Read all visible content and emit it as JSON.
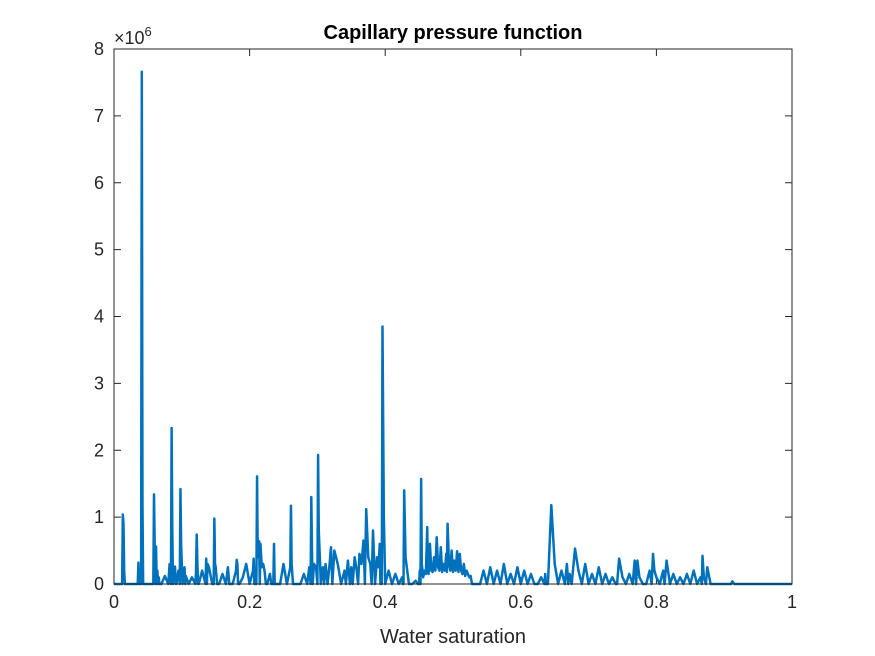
{
  "chart_data": {
    "type": "line",
    "title": "Capillary pressure function",
    "xlabel": "Water saturation",
    "ylabel": "",
    "xlim": [
      0,
      1
    ],
    "ylim": [
      0,
      8000000
    ],
    "xticks": [
      0,
      0.2,
      0.4,
      0.6,
      0.8,
      1
    ],
    "xtick_labels": [
      "0",
      "0.2",
      "0.4",
      "0.6",
      "0.8",
      "1"
    ],
    "yticks": [
      0,
      1000000,
      2000000,
      3000000,
      4000000,
      5000000,
      6000000,
      7000000,
      8000000
    ],
    "ytick_labels": [
      "0",
      "1",
      "2",
      "3",
      "4",
      "5",
      "6",
      "7",
      "8"
    ],
    "y_exponent_base": "×10",
    "y_exponent_power": "6",
    "grid": false,
    "box": true,
    "series": [
      {
        "color": "#0072BD",
        "x": [
          0,
          0.012,
          0.013,
          0.014,
          0.015,
          0.016,
          0.02,
          0.03,
          0.035,
          0.036,
          0.037,
          0.038,
          0.04,
          0.041,
          0.042,
          0.043,
          0.05,
          0.055,
          0.058,
          0.059,
          0.06,
          0.061,
          0.062,
          0.063,
          0.064,
          0.065,
          0.066,
          0.067,
          0.07,
          0.075,
          0.08,
          0.082,
          0.084,
          0.085,
          0.086,
          0.087,
          0.088,
          0.09,
          0.091,
          0.092,
          0.095,
          0.097,
          0.098,
          0.099,
          0.1,
          0.101,
          0.102,
          0.104,
          0.105,
          0.106,
          0.11,
          0.115,
          0.12,
          0.121,
          0.122,
          0.123,
          0.124,
          0.125,
          0.13,
          0.135,
          0.136,
          0.137,
          0.138,
          0.14,
          0.145,
          0.147,
          0.148,
          0.149,
          0.15,
          0.152,
          0.155,
          0.16,
          0.165,
          0.168,
          0.17,
          0.171,
          0.175,
          0.18,
          0.181,
          0.182,
          0.183,
          0.185,
          0.19,
          0.195,
          0.2,
          0.205,
          0.206,
          0.207,
          0.21,
          0.211,
          0.212,
          0.214,
          0.215,
          0.216,
          0.218,
          0.22,
          0.222,
          0.224,
          0.226,
          0.23,
          0.232,
          0.235,
          0.236,
          0.237,
          0.24,
          0.245,
          0.25,
          0.255,
          0.26,
          0.261,
          0.262,
          0.264,
          0.27,
          0.275,
          0.28,
          0.285,
          0.288,
          0.29,
          0.291,
          0.292,
          0.293,
          0.295,
          0.298,
          0.3,
          0.301,
          0.302,
          0.304,
          0.305,
          0.308,
          0.31,
          0.312,
          0.315,
          0.318,
          0.32,
          0.322,
          0.325,
          0.33,
          0.335,
          0.34,
          0.342,
          0.345,
          0.348,
          0.35,
          0.352,
          0.355,
          0.358,
          0.36,
          0.362,
          0.365,
          0.368,
          0.37,
          0.372,
          0.375,
          0.378,
          0.38,
          0.382,
          0.385,
          0.388,
          0.39,
          0.392,
          0.393,
          0.394,
          0.395,
          0.396,
          0.398,
          0.4,
          0.405,
          0.41,
          0.415,
          0.42,
          0.425,
          0.426,
          0.427,
          0.428,
          0.43,
          0.435,
          0.44,
          0.445,
          0.448,
          0.45,
          0.451,
          0.452,
          0.453,
          0.454,
          0.456,
          0.458,
          0.46,
          0.462,
          0.463,
          0.464,
          0.466,
          0.468,
          0.47,
          0.472,
          0.474,
          0.476,
          0.478,
          0.48,
          0.482,
          0.484,
          0.486,
          0.488,
          0.49,
          0.491,
          0.492,
          0.494,
          0.496,
          0.498,
          0.5,
          0.502,
          0.504,
          0.506,
          0.508,
          0.51,
          0.512,
          0.514,
          0.516,
          0.518,
          0.52,
          0.522,
          0.524,
          0.526,
          0.528,
          0.53,
          0.535,
          0.54,
          0.545,
          0.55,
          0.555,
          0.56,
          0.565,
          0.57,
          0.575,
          0.58,
          0.585,
          0.59,
          0.595,
          0.6,
          0.605,
          0.61,
          0.615,
          0.62,
          0.625,
          0.63,
          0.635,
          0.636,
          0.637,
          0.638,
          0.64,
          0.645,
          0.65,
          0.655,
          0.66,
          0.665,
          0.668,
          0.67,
          0.672,
          0.675,
          0.68,
          0.685,
          0.69,
          0.695,
          0.7,
          0.705,
          0.71,
          0.715,
          0.72,
          0.725,
          0.73,
          0.735,
          0.74,
          0.741,
          0.742,
          0.745,
          0.75,
          0.755,
          0.76,
          0.765,
          0.768,
          0.77,
          0.772,
          0.775,
          0.78,
          0.785,
          0.79,
          0.793,
          0.795,
          0.797,
          0.8,
          0.805,
          0.81,
          0.812,
          0.815,
          0.82,
          0.825,
          0.83,
          0.835,
          0.84,
          0.845,
          0.85,
          0.855,
          0.86,
          0.865,
          0.867,
          0.868,
          0.87,
          0.873,
          0.875,
          0.88,
          0.89,
          0.9,
          0.91,
          0.912,
          0.915,
          0.92,
          0.93,
          0.95,
          1.0
        ],
        "y": [
          0,
          0,
          1040000,
          900000,
          200000,
          0,
          0,
          0,
          0,
          320000,
          0,
          0,
          0,
          7660000,
          1200000,
          0,
          0,
          0,
          0,
          1340000,
          600000,
          0,
          560000,
          0,
          200000,
          0,
          100000,
          0,
          0,
          120000,
          0,
          300000,
          0,
          2330000,
          800000,
          0,
          250000,
          260000,
          0,
          0,
          200000,
          0,
          1420000,
          600000,
          300000,
          0,
          200000,
          250000,
          0,
          120000,
          0,
          100000,
          0,
          200000,
          740000,
          300000,
          0,
          0,
          200000,
          0,
          380000,
          0,
          300000,
          250000,
          0,
          0,
          980000,
          300000,
          250000,
          0,
          0,
          150000,
          0,
          250000,
          0,
          0,
          0,
          200000,
          360000,
          300000,
          0,
          0,
          100000,
          300000,
          0,
          200000,
          380000,
          0,
          0,
          1610000,
          400000,
          640000,
          0,
          600000,
          250000,
          300000,
          200000,
          0,
          0,
          150000,
          0,
          0,
          600000,
          0,
          0,
          0,
          300000,
          0,
          250000,
          1170000,
          300000,
          0,
          0,
          0,
          150000,
          0,
          250000,
          0,
          1300000,
          500000,
          0,
          300000,
          250000,
          0,
          1930000,
          800000,
          300000,
          0,
          250000,
          0,
          300000,
          0,
          300000,
          550000,
          0,
          500000,
          300000,
          0,
          200000,
          0,
          350000,
          0,
          250000,
          0,
          400000,
          200000,
          0,
          450000,
          300000,
          650000,
          0,
          1120000,
          400000,
          300000,
          0,
          800000,
          0,
          400000,
          250000,
          600000,
          0,
          300000,
          0,
          3850000,
          1000000,
          0,
          200000,
          0,
          150000,
          0,
          100000,
          0,
          0,
          1400000,
          400000,
          0,
          0,
          50000,
          0,
          0,
          200000,
          0,
          1570000,
          300000,
          100000,
          200000,
          150000,
          850000,
          200000,
          150000,
          600000,
          200000,
          180000,
          400000,
          200000,
          700000,
          250000,
          200000,
          550000,
          180000,
          300000,
          200000,
          450000,
          180000,
          900000,
          300000,
          200000,
          500000,
          180000,
          350000,
          200000,
          490000,
          180000,
          450000,
          200000,
          150000,
          300000,
          120000,
          200000,
          150000,
          100000,
          120000,
          0,
          0,
          0,
          0,
          200000,
          0,
          250000,
          0,
          200000,
          0,
          300000,
          0,
          150000,
          0,
          250000,
          0,
          200000,
          0,
          150000,
          0,
          0,
          100000,
          0,
          150000,
          0,
          0,
          0,
          1180000,
          300000,
          0,
          200000,
          0,
          300000,
          0,
          150000,
          0,
          530000,
          200000,
          0,
          300000,
          0,
          150000,
          0,
          250000,
          0,
          150000,
          0,
          100000,
          0,
          0,
          0,
          380000,
          100000,
          0,
          150000,
          0,
          350000,
          0,
          350000,
          100000,
          0,
          0,
          200000,
          0,
          450000,
          200000,
          100000,
          0,
          200000,
          0,
          350000,
          0,
          150000,
          0,
          100000,
          0,
          150000,
          0,
          200000,
          0,
          100000,
          0,
          420000,
          100000,
          0,
          250000,
          0,
          0,
          0,
          0,
          40000,
          0,
          0,
          0,
          0,
          0
        ]
      }
    ]
  }
}
